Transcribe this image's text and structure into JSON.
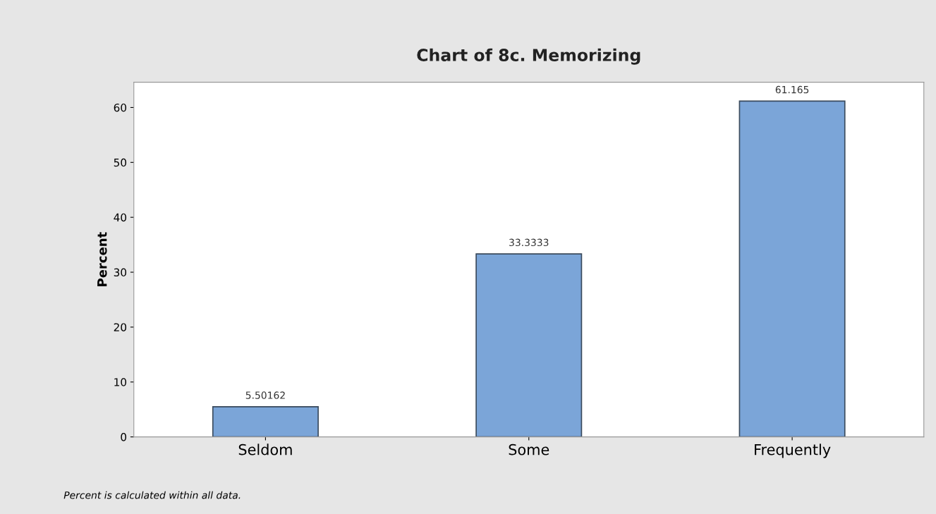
{
  "chart_data": {
    "type": "bar",
    "title": "Chart of 8c. Memorizing",
    "ylabel": "Percent",
    "categories": [
      "Seldom",
      "Some",
      "Frequently"
    ],
    "values": [
      5.50162,
      33.3333,
      61.165
    ],
    "color": "#7ba5d8",
    "ylim": [
      0,
      64.6
    ],
    "yticks": [
      0,
      10,
      20,
      30,
      40,
      50,
      60
    ],
    "data_labels": true,
    "grid": false,
    "legend": false,
    "annotations": [
      "Percent is calculated within all data."
    ]
  }
}
